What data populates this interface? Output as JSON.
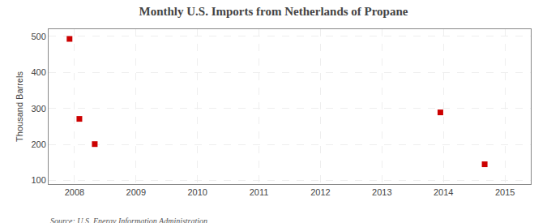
{
  "chart_data": {
    "type": "scatter",
    "title": "Monthly U.S. Imports from Netherlands of Propane",
    "ylabel": "Thousand Barrels",
    "source": "Source: U.S. Energy Information Administration",
    "x": [
      2007.92,
      2008.08,
      2008.33,
      2013.95,
      2014.67
    ],
    "values": [
      493,
      271,
      201,
      289,
      145
    ],
    "color": "#cc0000",
    "marker": "square",
    "xlim": [
      2007.58,
      2015.42
    ],
    "ylim": [
      90,
      520
    ],
    "xticks": [
      2008,
      2009,
      2010,
      2011,
      2012,
      2013,
      2014,
      2015
    ],
    "yticks": [
      100,
      200,
      300,
      400,
      500
    ],
    "grid": true
  }
}
